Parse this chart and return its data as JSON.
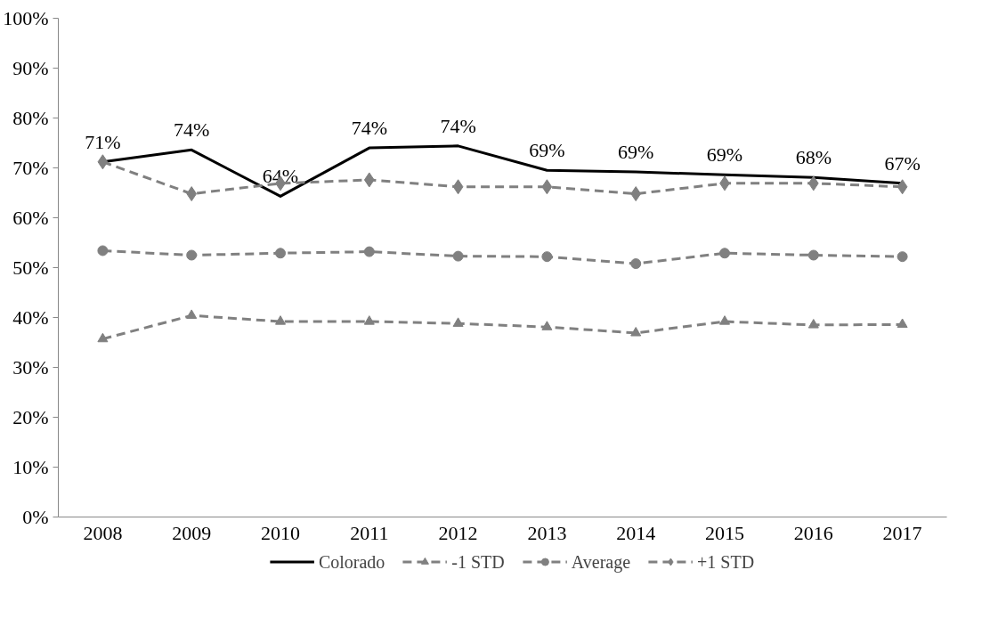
{
  "chart_data": {
    "type": "line",
    "categories": [
      "2008",
      "2009",
      "2010",
      "2011",
      "2012",
      "2013",
      "2014",
      "2015",
      "2016",
      "2017"
    ],
    "ylim": [
      0,
      100
    ],
    "yticks": [
      {
        "value": 0,
        "label": "0%"
      },
      {
        "value": 10,
        "label": "10%"
      },
      {
        "value": 20,
        "label": "20%"
      },
      {
        "value": 30,
        "label": "30%"
      },
      {
        "value": 40,
        "label": "40%"
      },
      {
        "value": 50,
        "label": "50%"
      },
      {
        "value": 60,
        "label": "60%"
      },
      {
        "value": 70,
        "label": "70%"
      },
      {
        "value": 80,
        "label": "80%"
      },
      {
        "value": 90,
        "label": "90%"
      },
      {
        "value": 100,
        "label": "100%"
      }
    ],
    "grid": false,
    "legend": "bottom",
    "series": [
      {
        "name": "Colorado",
        "color": "#000000",
        "marker": "none",
        "line_style": "solid",
        "values": [
          71.2,
          73.6,
          64.3,
          74.0,
          74.4,
          69.5,
          69.2,
          68.6,
          68.1,
          66.9
        ],
        "value_labels": [
          "71%",
          "74%",
          "64%",
          "74%",
          "74%",
          "69%",
          "69%",
          "69%",
          "68%",
          "67%"
        ]
      },
      {
        "name": "-1 STD",
        "color": "#808080",
        "marker": "triangle",
        "line_style": "dashed",
        "values": [
          35.7,
          40.4,
          39.2,
          39.2,
          38.8,
          38.1,
          36.9,
          39.2,
          38.5,
          38.6
        ]
      },
      {
        "name": "Average",
        "color": "#808080",
        "marker": "circle",
        "line_style": "dashed",
        "values": [
          53.4,
          52.5,
          52.9,
          53.2,
          52.3,
          52.2,
          50.8,
          52.9,
          52.5,
          52.2
        ]
      },
      {
        "name": "+1 STD",
        "color": "#808080",
        "marker": "diamond",
        "line_style": "dashed",
        "values": [
          71.2,
          64.8,
          66.9,
          67.6,
          66.2,
          66.2,
          64.8,
          66.9,
          66.9,
          66.2
        ]
      }
    ]
  }
}
